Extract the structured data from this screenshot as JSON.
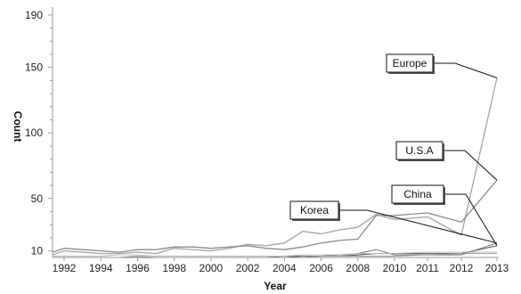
{
  "chart_data": {
    "type": "line",
    "title": "",
    "xlabel": "Year",
    "ylabel": "Count",
    "x": [
      1991,
      1992,
      1993,
      1994,
      1995,
      1996,
      1997,
      1998,
      1999,
      2000,
      2001,
      2002,
      2003,
      2004,
      2005,
      2006,
      2007,
      2008,
      2009,
      2010,
      2011,
      2012,
      2013
    ],
    "x_tick_labels": [
      "1992",
      "1994",
      "1996",
      "1998",
      "2000",
      "2002",
      "2004",
      "2006",
      "2008",
      "2010",
      "2011",
      "2012",
      "2013"
    ],
    "y_tick_labels": [
      "10",
      "50",
      "100",
      "150",
      "190"
    ],
    "ylim": [
      5,
      196
    ],
    "grid": false,
    "series": [
      {
        "name": "Europe",
        "color": "#a8a8a8",
        "width": 1.4,
        "values": [
          7,
          10,
          9,
          8,
          8,
          9,
          8,
          12,
          11,
          10,
          12,
          15,
          14,
          16,
          25,
          23,
          26,
          28,
          38,
          34,
          36,
          22,
          142
        ]
      },
      {
        "name": "U.S.A",
        "color": "#8c8c8c",
        "width": 1.3,
        "values": [
          9,
          12,
          11,
          10,
          9,
          11,
          11,
          13,
          13,
          12,
          13,
          14,
          12,
          11,
          13,
          16,
          18,
          19,
          37,
          37,
          39,
          32,
          64
        ]
      },
      {
        "name": "China",
        "color": "#555555",
        "width": 1.0,
        "values": [
          5,
          5,
          5,
          5,
          5,
          5,
          5,
          5,
          5,
          5,
          5,
          5,
          5,
          5,
          6,
          6,
          6,
          7,
          8,
          8,
          8,
          8,
          14
        ]
      },
      {
        "name": "Korea",
        "color": "#777777",
        "width": 1.0,
        "values": [
          5,
          5,
          5,
          5,
          5,
          5,
          5,
          5,
          5,
          5,
          5,
          5,
          5,
          6,
          6,
          6,
          7,
          8,
          11,
          7,
          7,
          7,
          16
        ]
      },
      {
        "name": "",
        "color": "#b5b5b5",
        "width": 0.9,
        "values": [
          6,
          6,
          6,
          6,
          7,
          7,
          6,
          6,
          6,
          6,
          6,
          6,
          6,
          6,
          7,
          7,
          7,
          8,
          8,
          8,
          9,
          9,
          9
        ]
      },
      {
        "name": "",
        "color": "#999999",
        "width": 0.9,
        "values": [
          5,
          5,
          5,
          5,
          5,
          6,
          5,
          5,
          5,
          5,
          5,
          5,
          5,
          5,
          5,
          6,
          6,
          6,
          6,
          6,
          7,
          8,
          8
        ]
      }
    ],
    "annotations": [
      {
        "label": "Europe",
        "series": 0
      },
      {
        "label": "U.S.A",
        "series": 1
      },
      {
        "label": "China",
        "series": 2
      },
      {
        "label": "Korea",
        "series": 3
      }
    ]
  }
}
